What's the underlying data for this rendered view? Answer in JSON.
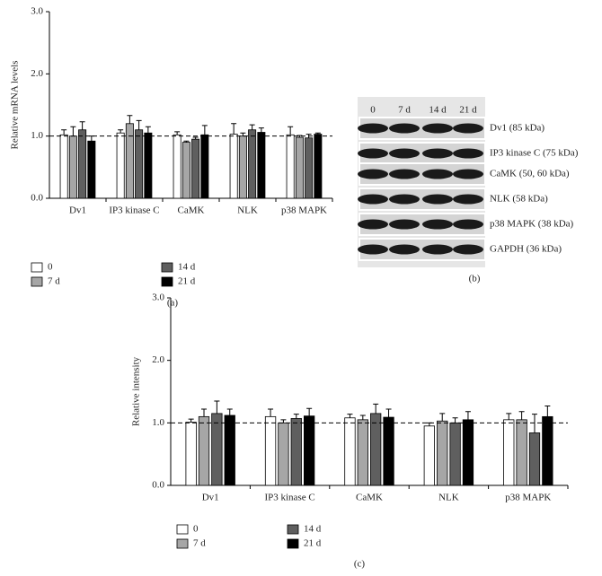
{
  "chart_data": [
    {
      "type": "bar",
      "panel": "(a)",
      "y_label": "Relative mRNA levels",
      "categories": [
        "Dv1",
        "IP3 kinase C",
        "CaMK",
        "NLK",
        "p38 MAPK"
      ],
      "series": [
        {
          "name": "0",
          "color": "#ffffff",
          "values": [
            1.02,
            1.05,
            1.02,
            1.03,
            1.02
          ],
          "errors": [
            0.08,
            0.05,
            0.05,
            0.17,
            0.13
          ]
        },
        {
          "name": "7 d",
          "color": "#a6a6a6",
          "values": [
            1.0,
            1.2,
            0.9,
            1.0,
            0.98
          ],
          "errors": [
            0.15,
            0.13,
            0.02,
            0.05,
            0.03
          ]
        },
        {
          "name": "14 d",
          "color": "#5f5f5f",
          "values": [
            1.1,
            1.1,
            0.95,
            1.1,
            0.97
          ],
          "errors": [
            0.13,
            0.15,
            0.03,
            0.08,
            0.06
          ]
        },
        {
          "name": "21 d",
          "color": "#000000",
          "values": [
            0.92,
            1.05,
            1.02,
            1.06,
            1.03
          ],
          "errors": [
            0.08,
            0.1,
            0.15,
            0.07,
            0.02
          ]
        }
      ],
      "ylim": [
        0,
        3
      ],
      "yticks": [
        {
          "value": 0,
          "label": "0.0"
        },
        {
          "value": 1,
          "label": "1.0"
        },
        {
          "value": 2,
          "label": "2.0"
        },
        {
          "value": 3,
          "label": "3.0"
        }
      ],
      "reference_line": 1
    },
    {
      "type": "bar",
      "panel": "(c)",
      "y_label": "Relative intensity",
      "categories": [
        "Dv1",
        "IP3 kinase C",
        "CaMK",
        "NLK",
        "p38 MAPK"
      ],
      "series": [
        {
          "name": "0",
          "color": "#ffffff",
          "values": [
            1.01,
            1.1,
            1.08,
            0.95,
            1.05
          ],
          "errors": [
            0.05,
            0.12,
            0.06,
            0.05,
            0.1
          ]
        },
        {
          "name": "7 d",
          "color": "#a6a6a6",
          "values": [
            1.1,
            1.0,
            1.05,
            1.03,
            1.05
          ],
          "errors": [
            0.12,
            0.05,
            0.07,
            0.12,
            0.13
          ]
        },
        {
          "name": "14 d",
          "color": "#5f5f5f",
          "values": [
            1.15,
            1.07,
            1.15,
            1.0,
            0.84
          ],
          "errors": [
            0.2,
            0.07,
            0.15,
            0.08,
            0.3
          ]
        },
        {
          "name": "21 d",
          "color": "#000000",
          "values": [
            1.12,
            1.11,
            1.09,
            1.05,
            1.1
          ],
          "errors": [
            0.1,
            0.12,
            0.13,
            0.13,
            0.17
          ]
        }
      ],
      "ylim": [
        0,
        3
      ],
      "yticks": [
        {
          "value": 0,
          "label": "0.0"
        },
        {
          "value": 1,
          "label": "1.0"
        },
        {
          "value": 2,
          "label": "2.0"
        },
        {
          "value": 3,
          "label": "3.0"
        }
      ],
      "reference_line": 1
    }
  ],
  "blot": {
    "panel": "(b)",
    "lanes": [
      "0",
      "7 d",
      "14 d",
      "21 d"
    ],
    "proteins": [
      "Dv1 (85 kDa)",
      "IP3 kinase C (75 kDa)",
      "CaMK (50, 60 kDa)",
      "NLK (58 kDa)",
      "p38 MAPK (38 kDa)",
      "GAPDH (36 kDa)"
    ]
  }
}
